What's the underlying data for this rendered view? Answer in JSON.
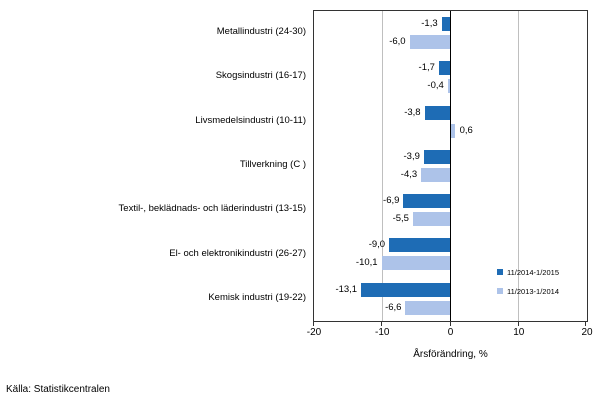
{
  "source_note": "Källa: Statistikcentralen",
  "chart_data": {
    "type": "bar",
    "orientation": "horizontal",
    "title": "",
    "xlabel": "Årsförändring, %",
    "xlim": [
      -20,
      20
    ],
    "xticks": [
      -20,
      -10,
      0,
      10,
      20
    ],
    "grid": "vertical",
    "legend_position": "inside-right",
    "categories": [
      "Metallindustri (24-30)",
      "Skogsindustri (16-17)",
      "Livsmedelsindustri (10-11)",
      "Tillverkning (C )",
      "Textil-, beklädnads- och läderindustri (13-15)",
      "El- och elektronikindustri (26-27)",
      "Kemisk industri (19-22)"
    ],
    "series": [
      {
        "name": "11/2014-1/2015",
        "color": "#1E6CB5",
        "values": [
          -1.3,
          -1.7,
          -3.8,
          -3.9,
          -6.9,
          -9.0,
          -13.1
        ],
        "value_labels": [
          "-1,3",
          "-1,7",
          "-3,8",
          "-3,9",
          "-6,9",
          "-9,0",
          "-13,1"
        ]
      },
      {
        "name": "11/2013-1/2014",
        "color": "#ADC3E9",
        "values": [
          -6.0,
          -0.4,
          0.6,
          -4.3,
          -5.5,
          -10.1,
          -6.6
        ],
        "value_labels": [
          "-6,0",
          "-0,4",
          "0,6",
          "-4,3",
          "-5,5",
          "-10,1",
          "-6,6"
        ]
      }
    ],
    "colors": {
      "grid": "#BFBFBF",
      "zero_line": "#000000",
      "axis": "#333333",
      "text": "#000000"
    }
  }
}
